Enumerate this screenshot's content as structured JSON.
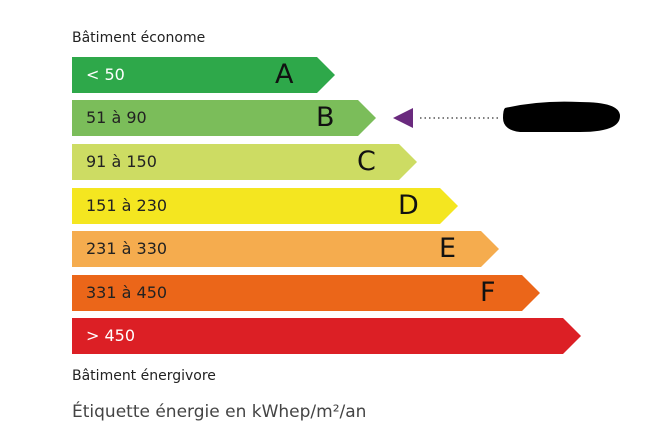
{
  "top_label": "Bâtiment économe",
  "bottom_label": "Bâtiment énergivore",
  "caption": "Étiquette énergie en kWhep/m²/an",
  "classes": [
    {
      "letter": "A",
      "range": "< 50",
      "color": "#2ea84a",
      "text_color": "#ffffff"
    },
    {
      "letter": "B",
      "range": "51 à 90",
      "color": "#7bbd5a",
      "text_color": "#222222"
    },
    {
      "letter": "C",
      "range": "91 à 150",
      "color": "#cddc63",
      "text_color": "#222222"
    },
    {
      "letter": "D",
      "range": "151 à 230",
      "color": "#f4e620",
      "text_color": "#222222"
    },
    {
      "letter": "E",
      "range": "231 à 330",
      "color": "#f5ac4e",
      "text_color": "#222222"
    },
    {
      "letter": "F",
      "range": "331 à 450",
      "color": "#eb6619",
      "text_color": "#222222"
    },
    {
      "letter": "",
      "range": "> 450",
      "color": "#dc1f25",
      "text_color": "#ffffff"
    }
  ],
  "indicator": {
    "class": "B",
    "color": "#6a2a7e",
    "label_redacted": true
  }
}
